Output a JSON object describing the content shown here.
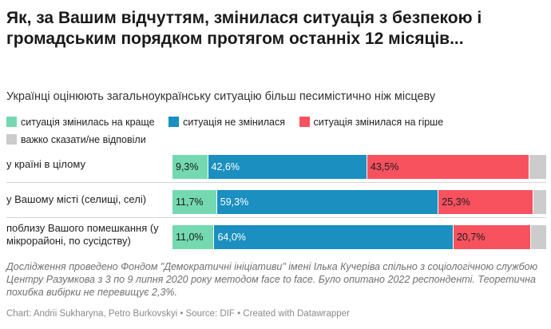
{
  "title": "Як, за Вашим відчуттям, змінилася ситуація з безпекою і громадським порядком протягом останніх 12 місяців...",
  "subtitle": "Українці оцінюють загальноукраїнську ситуацію більш песимістично ніж місцеву",
  "colors": {
    "better": "#74d9b0",
    "unchanged": "#1a8fc0",
    "worse": "#f8525f",
    "hard_to_say": "#cccccc"
  },
  "chart_data": {
    "type": "bar",
    "stacked": true,
    "orientation": "horizontal",
    "value_suffix": "%",
    "categories": [
      "у країні в цілому",
      "у Вашому місті (селищі, селі)",
      "поблизу Вашого помешкання (у мікрорайоні, по сусідству)"
    ],
    "series": [
      {
        "key": "better",
        "name": "ситуація змінилась на краще",
        "values": [
          9.3,
          11.7,
          11.0
        ],
        "labels": [
          "9,3%",
          "11,7%",
          "11,0%"
        ]
      },
      {
        "key": "unchanged",
        "name": "ситуація не змінилася",
        "values": [
          42.6,
          59.3,
          64.0
        ],
        "labels": [
          "42,6%",
          "59,3%",
          "64,0%"
        ]
      },
      {
        "key": "worse",
        "name": "ситуація змінилася на гірше",
        "values": [
          43.5,
          25.3,
          20.7
        ],
        "labels": [
          "43,5%",
          "25,3%",
          "20,7%"
        ]
      },
      {
        "key": "hard_to_say",
        "name": "важко сказати/не відповіли",
        "values": [
          4.6,
          3.7,
          4.3
        ],
        "labels": [
          "",
          "",
          ""
        ]
      }
    ],
    "legend_position": "top",
    "grid": false
  },
  "footnote": "Дослідження проведено Фондом \"Демократичні ініціативи\" імені Ілька Кучеріва спільно з соціологічною службою Центру Разумкова з 3 по 9 липня 2020 року методом face to face. Було опитано 2022 респонденті. Теоретична похибка вибірки не перевищує 2,3%.",
  "credit": "Chart: Andrii Sukharyna, Petro Burkovskyi • Source: DIF • Created with Datawrapper"
}
